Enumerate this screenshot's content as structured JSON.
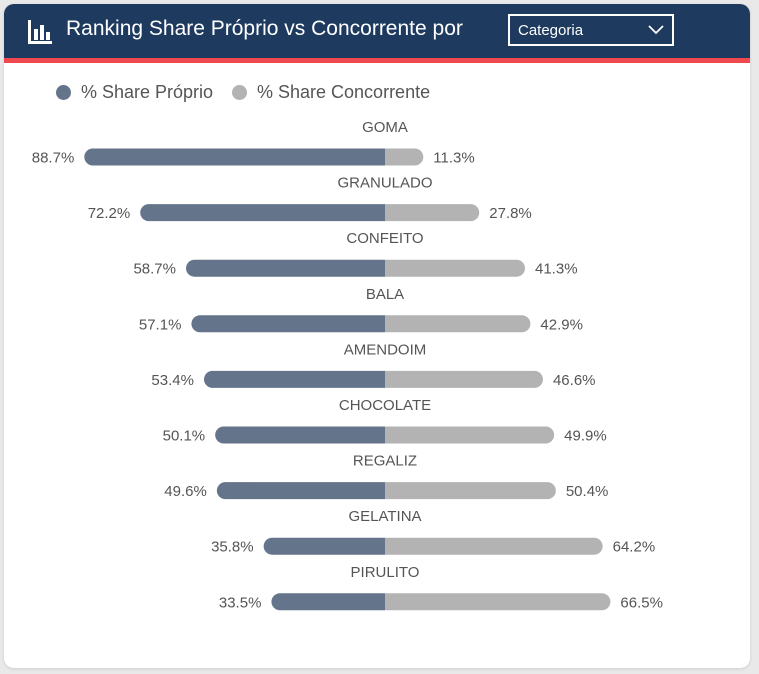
{
  "header": {
    "title": "Ranking Share Próprio vs Concorrente por",
    "dropdown_value": "Categoria",
    "icon": "bar-chart-icon"
  },
  "colors": {
    "header_bg": "#1e3a5f",
    "accent_line": "#f0484f",
    "own": "#64748b",
    "competitor": "#b3b3b3"
  },
  "chart_data": {
    "type": "bar",
    "orientation": "horizontal-diverging",
    "categories": [
      "GOMA",
      "GRANULADO",
      "CONFEITO",
      "BALA",
      "AMENDOIM",
      "CHOCOLATE",
      "REGALIZ",
      "GELATINA",
      "PIRULITO"
    ],
    "series": [
      {
        "name": "% Share Próprio",
        "values": [
          88.7,
          72.2,
          58.7,
          57.1,
          53.4,
          50.1,
          49.6,
          35.8,
          33.5
        ],
        "labels": [
          "88.7%",
          "72.2%",
          "58.7%",
          "57.1%",
          "53.4%",
          "50.1%",
          "49.6%",
          "35.8%",
          "33.5%"
        ]
      },
      {
        "name": "% Share Concorrente",
        "values": [
          11.3,
          27.8,
          41.3,
          42.9,
          46.6,
          49.9,
          50.4,
          64.2,
          66.5
        ],
        "labels": [
          "11.3%",
          "27.8%",
          "41.3%",
          "42.9%",
          "46.6%",
          "49.9%",
          "50.4%",
          "64.2%",
          "66.5%"
        ]
      }
    ],
    "legend_position": "top-left",
    "grid": false
  }
}
